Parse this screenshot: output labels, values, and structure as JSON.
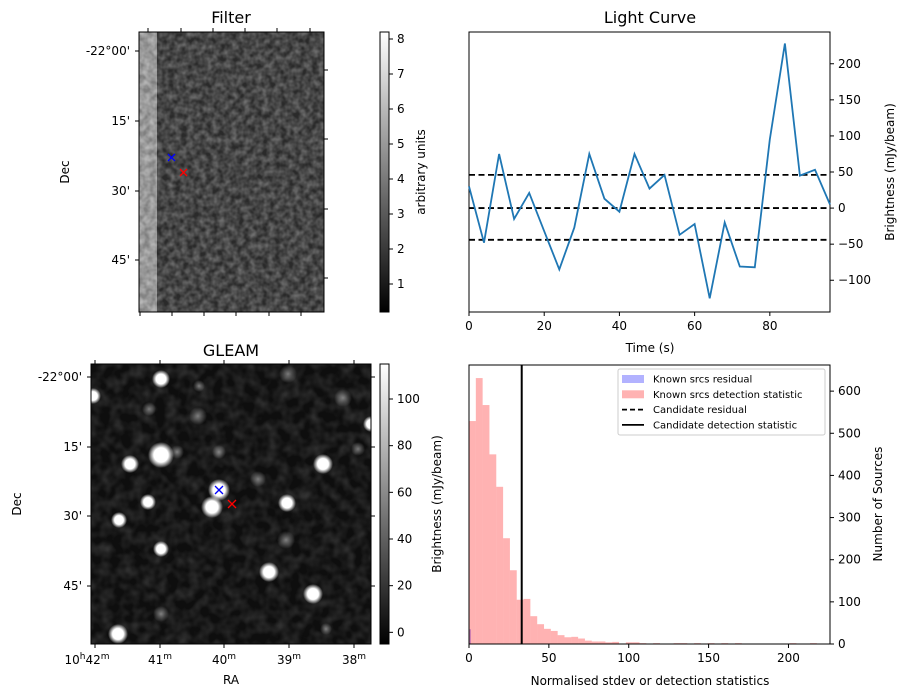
{
  "chart_data": [
    {
      "id": "filter",
      "type": "heatmap",
      "title": "Filter",
      "xlabel": "",
      "ylabel": "Dec",
      "y_tick_labels": [
        "-22°00'",
        "15'",
        "30'",
        "45'"
      ],
      "x_tick_labels": [],
      "colormap": "gray",
      "colorbar": {
        "label": "arbitrary units",
        "ticks": [
          1,
          2,
          3,
          4,
          5,
          6,
          7,
          8
        ],
        "range": [
          0.2,
          8.2
        ]
      },
      "markers": [
        {
          "name": "candidate-gleam",
          "symbol": "x",
          "color": "#0000ff"
        },
        {
          "name": "candidate-position",
          "symbol": "x",
          "color": "#ff0000"
        }
      ]
    },
    {
      "id": "light_curve",
      "type": "line",
      "title": "Light Curve",
      "xlabel": "Time (s)",
      "ylabel": "Brightness (mJy/beam)",
      "xlim": [
        0,
        96
      ],
      "ylim": [
        -144,
        244
      ],
      "x_ticks": [
        0,
        20,
        40,
        60,
        80
      ],
      "y_ticks": [
        -100,
        -50,
        0,
        50,
        100,
        150,
        200
      ],
      "y_axis_side": "right",
      "grid": false,
      "series": [
        {
          "name": "Light curve",
          "color": "#1f77b4",
          "x": [
            0,
            4,
            8,
            12,
            16,
            20,
            24,
            28,
            32,
            36,
            40,
            44,
            48,
            52,
            56,
            60,
            64,
            68,
            72,
            76,
            80,
            84,
            88,
            92,
            96
          ],
          "y": [
            30,
            -48,
            75,
            -15,
            21,
            -32,
            -85,
            -27,
            75,
            13,
            -5,
            75,
            27,
            46,
            -37,
            -22,
            -125,
            -20,
            -81,
            -82,
            95,
            228,
            45,
            53,
            5
          ]
        }
      ],
      "hlines": [
        {
          "y": 46,
          "style": "dashed",
          "color": "#000000"
        },
        {
          "y": 0,
          "style": "dashed",
          "color": "#000000"
        },
        {
          "y": -44,
          "style": "dashed",
          "color": "#000000"
        }
      ]
    },
    {
      "id": "gleam",
      "type": "heatmap",
      "title": "GLEAM",
      "xlabel": "RA",
      "ylabel": "Dec",
      "x_tick_labels": [
        {
          "base": "10",
          "sup1": "h",
          "mid": "42",
          "sup2": "m"
        },
        {
          "base": "",
          "sup1": "",
          "mid": "41",
          "sup2": "m"
        },
        {
          "base": "",
          "sup1": "",
          "mid": "40",
          "sup2": "m"
        },
        {
          "base": "",
          "sup1": "",
          "mid": "39",
          "sup2": "m"
        },
        {
          "base": "",
          "sup1": "",
          "mid": "38",
          "sup2": "m"
        }
      ],
      "y_tick_labels": [
        "-22°00'",
        "15'",
        "30'",
        "45'"
      ],
      "colormap": "gray",
      "colorbar": {
        "label": "Brightness (mJy/beam)",
        "ticks": [
          0,
          20,
          40,
          60,
          80,
          100
        ],
        "range": [
          -5,
          115
        ]
      },
      "markers": [
        {
          "name": "candidate-gleam",
          "symbol": "x",
          "color": "#0000ff"
        },
        {
          "name": "candidate-position",
          "symbol": "x",
          "color": "#ff0000"
        }
      ]
    },
    {
      "id": "histogram",
      "type": "bar",
      "title": "",
      "xlabel": "Normalised stdev or detection statistics",
      "ylabel": "Number of Sources",
      "xlim": [
        0,
        226
      ],
      "ylim": [
        0,
        662
      ],
      "x_ticks": [
        0,
        50,
        100,
        150,
        200
      ],
      "y_ticks": [
        0,
        100,
        200,
        300,
        400,
        500,
        600
      ],
      "y_axis_side": "right",
      "bin_width": 4.27,
      "series": [
        {
          "name": "Known srcs residual",
          "color": "#0000ff",
          "alpha": 0.3,
          "bin_starts": [
            0
          ],
          "values": [
            35
          ]
        },
        {
          "name": "Known srcs detection statistic",
          "color": "#ff0000",
          "alpha": 0.3,
          "bin_starts": [
            0,
            4.27,
            8.54,
            12.81,
            17.08,
            21.35,
            25.62,
            29.89,
            34.16,
            38.43,
            42.7,
            46.97,
            51.24,
            55.51,
            59.78,
            64.05,
            68.32,
            72.59,
            76.86,
            81.13,
            85.4,
            89.67,
            98.21,
            102.48,
            106.75,
            115.29,
            128.1,
            132.37,
            140.91,
            149.45,
            157.99,
            166.53,
            200.69,
            213.5
          ],
          "values": [
            529,
            631,
            567,
            450,
            373,
            251,
            175,
            105,
            107,
            66,
            47,
            36,
            31,
            21,
            16,
            17,
            13,
            8,
            6,
            6,
            4,
            5,
            4,
            4,
            2,
            2,
            2,
            2,
            2,
            2,
            2,
            2,
            2,
            2
          ]
        }
      ],
      "vlines": [
        {
          "name": "Candidate detection statistic",
          "x": 33,
          "style": "solid",
          "color": "#000000"
        }
      ],
      "legend": {
        "position": "top-right",
        "entries": [
          {
            "label": "Known srcs residual",
            "kind": "patch",
            "color": "#0000ff"
          },
          {
            "label": "Known srcs detection statistic",
            "kind": "patch",
            "color": "#ff0000"
          },
          {
            "label": "Candidate residual",
            "kind": "dashed",
            "color": "#000000"
          },
          {
            "label": "Candidate detection statistic",
            "kind": "solid",
            "color": "#000000"
          }
        ]
      }
    }
  ]
}
